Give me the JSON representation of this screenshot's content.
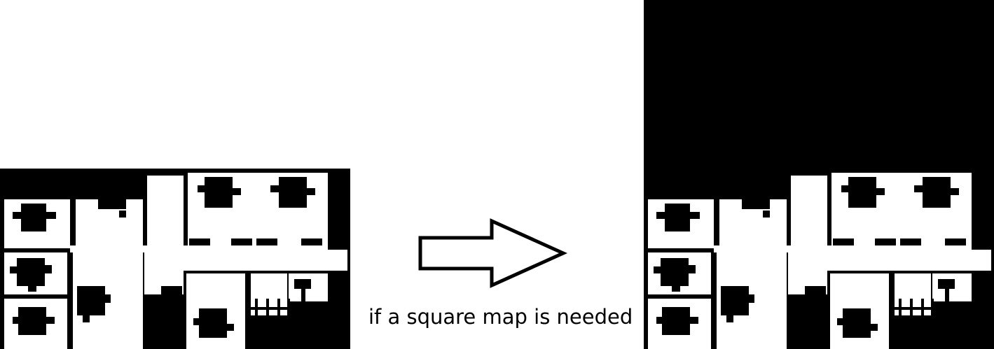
{
  "caption": "if a square map is needed",
  "colors": {
    "free_space": "#ffffff",
    "occupied": "#000000",
    "arrow_fill": "#ffffff",
    "arrow_stroke": "#000000"
  },
  "icons": {
    "transform_arrow": "arrow-right-icon"
  }
}
